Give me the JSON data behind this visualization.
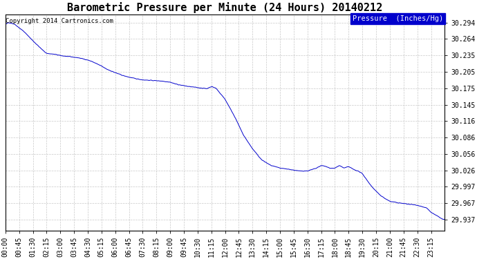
{
  "title": "Barometric Pressure per Minute (24 Hours) 20140212",
  "copyright_text": "Copyright 2014 Cartronics.com",
  "legend_label": "Pressure  (Inches/Hg)",
  "line_color": "#0000cc",
  "background_color": "#ffffff",
  "grid_color": "#c8c8c8",
  "legend_bg": "#0000cc",
  "legend_fg": "#ffffff",
  "yticks": [
    29.937,
    29.967,
    29.997,
    30.026,
    30.056,
    30.086,
    30.116,
    30.145,
    30.175,
    30.205,
    30.235,
    30.264,
    30.294
  ],
  "ymin": 29.917,
  "ymax": 30.308,
  "xtick_labels": [
    "00:00",
    "00:45",
    "01:30",
    "02:15",
    "03:00",
    "03:45",
    "04:30",
    "05:15",
    "06:00",
    "06:45",
    "07:30",
    "08:15",
    "09:00",
    "09:45",
    "10:30",
    "11:15",
    "12:00",
    "12:45",
    "13:30",
    "14:15",
    "15:00",
    "15:45",
    "16:30",
    "17:15",
    "18:00",
    "18:45",
    "19:30",
    "20:15",
    "21:00",
    "21:45",
    "22:30",
    "23:15"
  ],
  "title_fontsize": 11,
  "copyright_fontsize": 6.5,
  "tick_fontsize": 7,
  "legend_fontsize": 7.5,
  "waypoints_min": [
    0,
    10,
    30,
    60,
    90,
    120,
    135,
    150,
    165,
    180,
    210,
    240,
    255,
    270,
    285,
    300,
    315,
    330,
    360,
    390,
    420,
    450,
    480,
    510,
    540,
    555,
    570,
    600,
    615,
    630,
    645,
    660,
    675,
    690,
    720,
    750,
    780,
    810,
    840,
    870,
    900,
    930,
    960,
    990,
    1020,
    1035,
    1050,
    1065,
    1080,
    1095,
    1110,
    1125,
    1140,
    1155,
    1170,
    1200,
    1230,
    1260,
    1290,
    1320,
    1350,
    1380,
    1395,
    1435
  ],
  "waypoints_val": [
    30.29,
    30.294,
    30.291,
    30.278,
    30.261,
    30.245,
    30.238,
    30.237,
    30.236,
    30.234,
    30.232,
    30.23,
    30.228,
    30.226,
    30.223,
    30.219,
    30.215,
    30.21,
    30.203,
    30.197,
    30.193,
    30.19,
    30.189,
    30.188,
    30.186,
    30.183,
    30.181,
    30.178,
    30.177,
    30.176,
    30.175,
    30.174,
    30.178,
    30.175,
    30.155,
    30.125,
    30.09,
    30.065,
    30.045,
    30.035,
    30.03,
    30.028,
    30.025,
    30.025,
    30.03,
    30.035,
    30.033,
    30.03,
    30.03,
    30.035,
    30.03,
    30.033,
    30.028,
    30.025,
    30.02,
    29.997,
    29.98,
    29.97,
    29.967,
    29.965,
    29.963,
    29.958,
    29.95,
    29.937
  ]
}
